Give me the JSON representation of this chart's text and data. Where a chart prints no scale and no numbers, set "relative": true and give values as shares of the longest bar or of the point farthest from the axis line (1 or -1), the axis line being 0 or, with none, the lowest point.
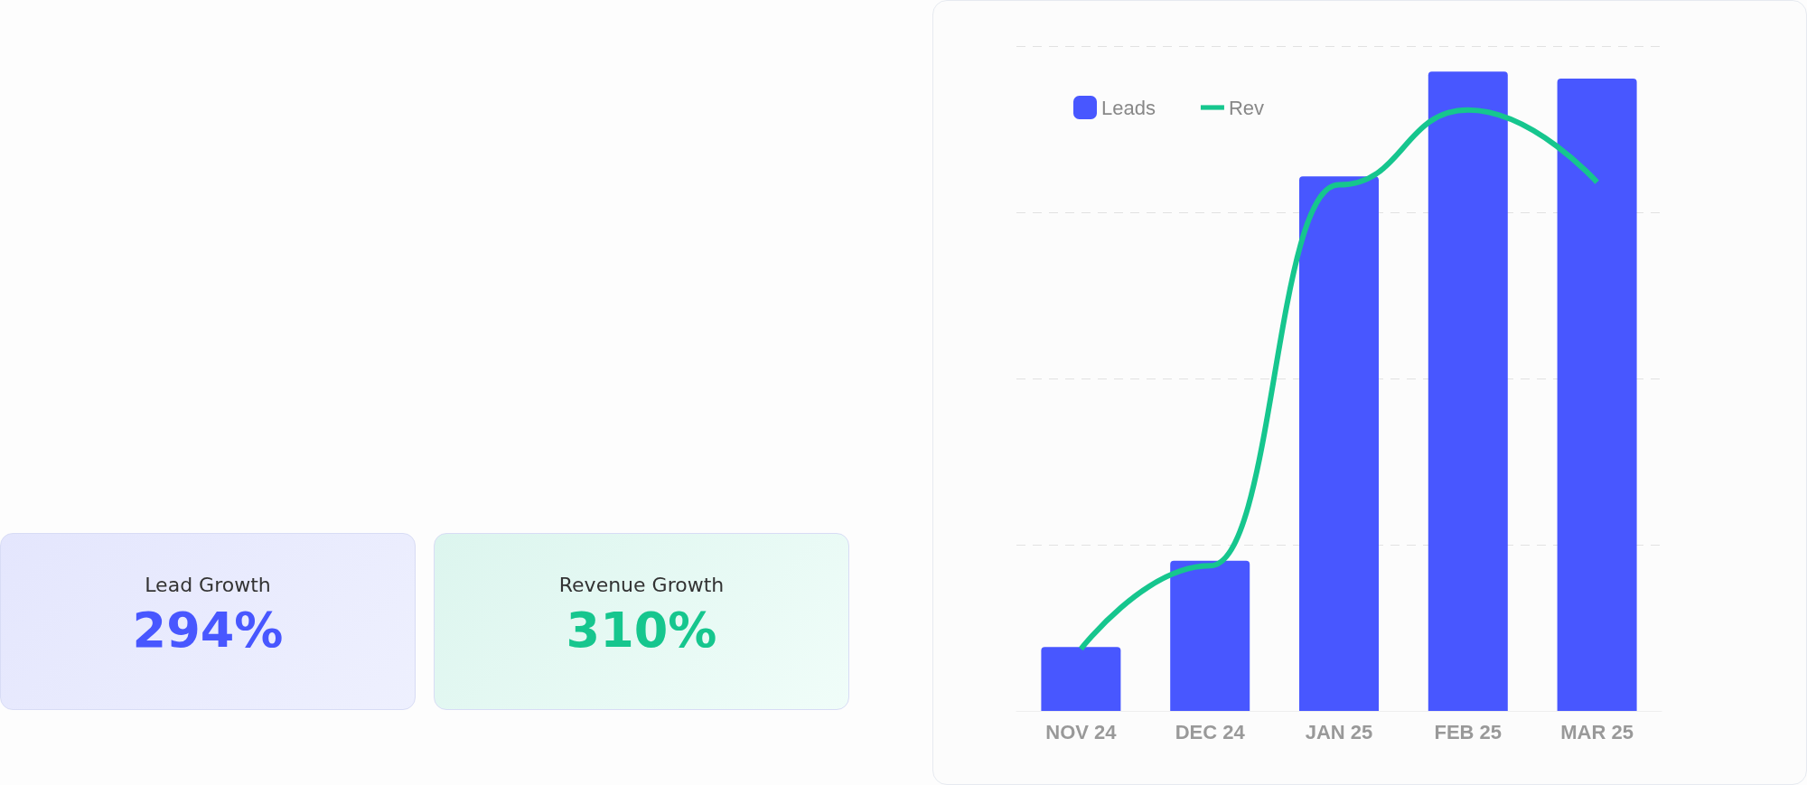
{
  "chart_data": [
    {
      "type": "other",
      "title": "Lead Growth",
      "annotations": [
        "294%"
      ],
      "color": "#4857ff"
    },
    {
      "type": "other",
      "title": "Revenue Growth",
      "annotations": [
        "310%"
      ],
      "color": "#16c68e"
    },
    {
      "type": "bar",
      "relative": true,
      "categories": [
        "NOV 24",
        "DEC 24",
        "JAN 25",
        "FEB 25",
        "MAR 25"
      ],
      "series": [
        {
          "name": "Leads",
          "type": "bar",
          "color": "#4857ff",
          "values": [
            0.1,
            0.235,
            0.836,
            1,
            0.989
          ]
        },
        {
          "name": "Rev",
          "type": "line",
          "color": "#16c68e",
          "values": [
            0.097,
            0.227,
            0.823,
            0.94,
            0.827
          ]
        }
      ],
      "grid": "y",
      "legend": "top left",
      "marker": "none"
    }
  ]
}
